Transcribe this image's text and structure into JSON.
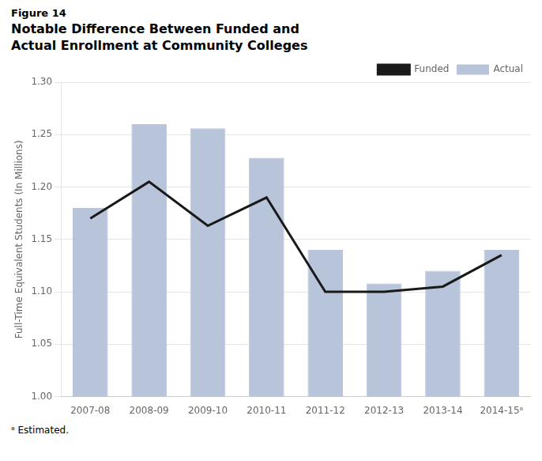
{
  "chart_data": {
    "type": "bar",
    "title": [
      "Notable Difference Between Funded and",
      "Actual Enrollment at Community Colleges"
    ],
    "annotations": [
      "Figure 14",
      "ᵃ Estimated."
    ],
    "y_label": "Full-Time Equivalent Students (In Millions)",
    "categories": [
      "2007-08",
      "2008-09",
      "2009-10",
      "2010-11",
      "2011-12",
      "2012-13",
      "2013-14",
      "2014-15ᵃ"
    ],
    "series": [
      {
        "name": "Actual",
        "type": "bar",
        "color": "#b8c4d9",
        "values": [
          1.18,
          1.26,
          1.256,
          1.228,
          1.14,
          1.108,
          1.12,
          1.14
        ]
      },
      {
        "name": "Funded",
        "type": "line",
        "color": "#1a1a1a",
        "values": [
          1.17,
          1.205,
          1.163,
          1.19,
          1.1,
          1.1,
          1.105,
          1.135
        ]
      }
    ],
    "ylim": [
      1.0,
      1.3
    ],
    "yticks": [
      {
        "value": 1.0,
        "label": "1.00"
      },
      1.05,
      {
        "value": 1.1,
        "label": "1.10"
      },
      1.15,
      {
        "value": 1.2,
        "label": "1.20"
      },
      1.25,
      {
        "value": 1.3,
        "label": "1.30"
      }
    ],
    "grid": true,
    "legend": "upper right"
  }
}
